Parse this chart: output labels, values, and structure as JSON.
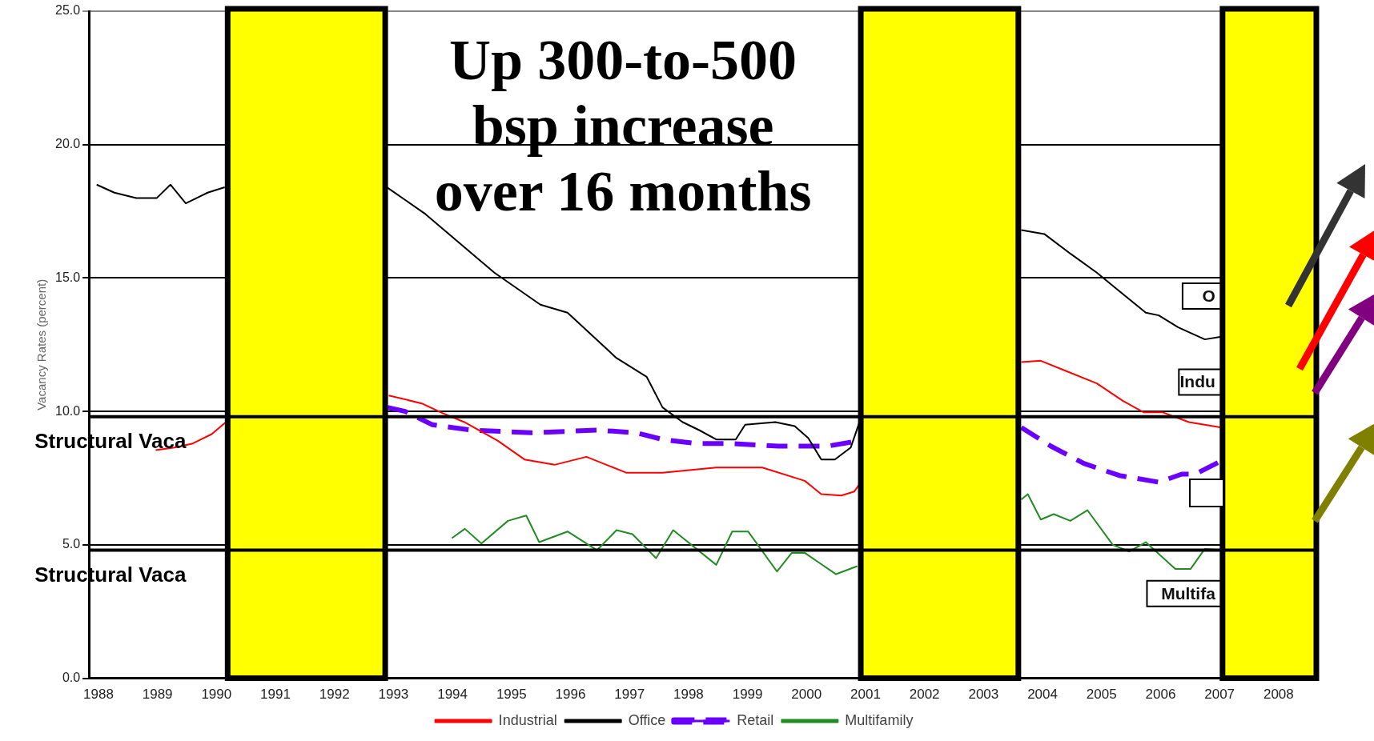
{
  "chart_data": {
    "type": "line",
    "ylabel": "Vacancy Rates (percent)",
    "xlim": [
      1987.84,
      2008.64
    ],
    "xticks": [
      1988,
      1989,
      1990,
      1991,
      1992,
      1993,
      1994,
      1995,
      1996,
      1997,
      1998,
      1999,
      2000,
      2001,
      2002,
      2003,
      2004,
      2005,
      2006,
      2007,
      2008
    ],
    "ylim": [
      0,
      25
    ],
    "yticks": [
      {
        "value": 0,
        "label": "0.0"
      },
      {
        "value": 5,
        "label": "5.0"
      },
      {
        "value": 10,
        "label": "10.0"
      },
      {
        "value": 15,
        "label": "15.0"
      },
      {
        "value": 20,
        "label": "20.0"
      },
      {
        "value": 25,
        "label": "25.0"
      }
    ],
    "grid": "y",
    "legend": "bottom",
    "marker": "none",
    "series": [
      {
        "name": "Industrial",
        "color": "#ff0000",
        "x": [
          1988.97,
          1989.29,
          1989.6,
          1989.92,
          1990.16,
          1991.5,
          1992.92,
          1993.48,
          1993.82,
          1994.2,
          1994.77,
          1995.22,
          1995.73,
          1996.27,
          1996.95,
          1997.56,
          1998.47,
          1999.25,
          1999.97,
          2000.25,
          2000.59,
          2000.81,
          2000.89,
          2002.3,
          2003.64,
          2003.97,
          2004.36,
          2004.92,
          2005.36,
          2005.71,
          2006.03,
          2006.48,
          2007.03
        ],
        "values": [
          8.55,
          8.65,
          8.8,
          9.15,
          9.6,
          null,
          10.6,
          10.3,
          9.95,
          9.6,
          8.9,
          8.2,
          8.0,
          8.3,
          7.7,
          7.7,
          7.9,
          7.9,
          7.4,
          6.9,
          6.85,
          7.0,
          7.25,
          null,
          11.85,
          11.9,
          11.55,
          11.05,
          10.4,
          9.97,
          9.97,
          9.6,
          9.4
        ]
      },
      {
        "name": "Office",
        "color": "#000000",
        "x": [
          1987.97,
          1988.27,
          1988.64,
          1988.99,
          1989.22,
          1989.48,
          1989.85,
          1990.14,
          1991.5,
          1992.89,
          1993.54,
          1994.71,
          1995.49,
          1995.95,
          1996.78,
          1997.29,
          1997.56,
          1997.9,
          1998.18,
          1998.47,
          1998.8,
          1998.96,
          1999.47,
          1999.8,
          2000.03,
          2000.25,
          2000.48,
          2000.75,
          2000.89,
          2002.3,
          2003.64,
          2004.03,
          2004.48,
          2004.92,
          2005.25,
          2005.75,
          2005.97,
          2006.3,
          2006.75,
          2007.03
        ],
        "values": [
          18.5,
          18.2,
          18.0,
          18.0,
          18.5,
          17.8,
          18.2,
          18.4,
          null,
          18.4,
          17.4,
          15.2,
          14.0,
          13.7,
          12.0,
          11.3,
          10.15,
          9.6,
          9.3,
          8.95,
          8.95,
          9.5,
          9.6,
          9.45,
          9.0,
          8.2,
          8.2,
          8.65,
          9.55,
          null,
          16.8,
          16.65,
          15.9,
          15.2,
          14.6,
          13.7,
          13.6,
          13.15,
          12.7,
          12.8
        ]
      },
      {
        "name": "Retail",
        "color": "#6a00ff",
        "line_style": "dashed",
        "x": [
          1992.9,
          1993.2,
          1993.66,
          1994.33,
          1995.33,
          1996.45,
          1997.12,
          1997.56,
          1998.12,
          1998.68,
          1999.52,
          2000.36,
          2000.89,
          2002.3,
          2003.64,
          2004.14,
          2004.7,
          2005.3,
          2005.97,
          2006.36,
          2006.59,
          2007.03
        ],
        "values": [
          10.15,
          10.0,
          9.5,
          9.3,
          9.2,
          9.3,
          9.2,
          8.95,
          8.8,
          8.8,
          8.7,
          8.7,
          8.9,
          null,
          9.4,
          8.7,
          8.05,
          7.6,
          7.35,
          7.65,
          7.65,
          8.15
        ]
      },
      {
        "name": "Multifamily",
        "color": "#228b22",
        "x": [
          1993.99,
          1994.21,
          1994.49,
          1994.94,
          1995.25,
          1995.47,
          1995.95,
          1996.45,
          1996.78,
          1997.05,
          1997.45,
          1997.74,
          1998.47,
          1998.74,
          1999.01,
          1999.5,
          1999.75,
          1999.97,
          2000.5,
          2000.86,
          2002.3,
          2003.64,
          2003.75,
          2003.97,
          2004.19,
          2004.47,
          2004.76,
          2005.19,
          2005.47,
          2005.75,
          2006.25,
          2006.51,
          2006.75,
          2007.03
        ],
        "values": [
          5.25,
          5.6,
          5.05,
          5.9,
          6.1,
          5.1,
          5.5,
          4.8,
          5.55,
          5.4,
          4.5,
          5.55,
          4.25,
          5.5,
          5.5,
          4.0,
          4.7,
          4.7,
          3.9,
          4.2,
          null,
          6.7,
          6.9,
          5.95,
          6.15,
          5.9,
          6.3,
          5.0,
          4.75,
          5.1,
          4.1,
          4.1,
          4.85,
          4.8
        ]
      }
    ],
    "bands": [
      {
        "axis": "x",
        "from": 1990.19,
        "to": 1992.86,
        "color": "#ffff00"
      },
      {
        "axis": "x",
        "from": 2000.92,
        "to": 2003.59,
        "color": "#ffff00"
      },
      {
        "axis": "x",
        "from": 2007.05,
        "to": 2008.64,
        "color": "#ffff00"
      }
    ],
    "ref_lines": [
      {
        "axis": "y",
        "value": 9.8,
        "label": "Structural Vaca",
        "color": "#000000"
      },
      {
        "axis": "y",
        "value": 4.8,
        "label": "Structural Vaca",
        "color": "#000000"
      }
    ],
    "annotations": [
      "Up 300-to-500\nbsp increase\nover 16 months",
      "O",
      "Indu",
      "Multifa"
    ]
  }
}
